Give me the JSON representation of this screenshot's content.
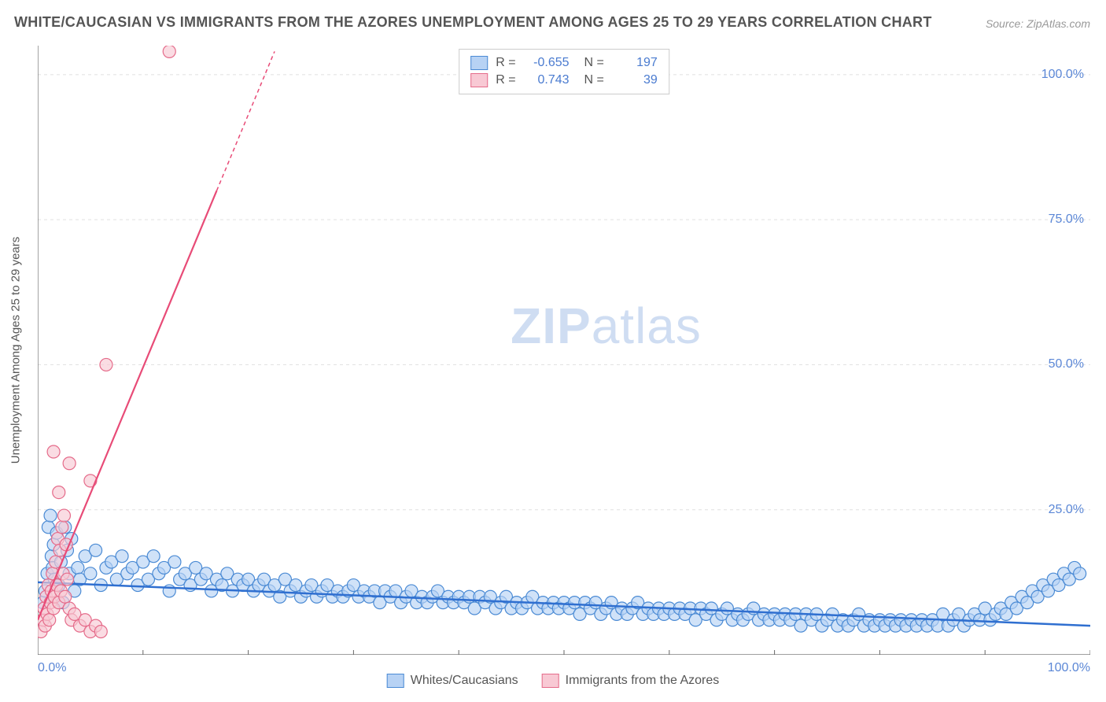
{
  "title": "WHITE/CAUCASIAN VS IMMIGRANTS FROM THE AZORES UNEMPLOYMENT AMONG AGES 25 TO 29 YEARS CORRELATION CHART",
  "source": "Source: ZipAtlas.com",
  "watermark_a": "ZIP",
  "watermark_b": "atlas",
  "ylabel": "Unemployment Among Ages 25 to 29 years",
  "chart": {
    "type": "scatter",
    "xlim": [
      0,
      100
    ],
    "ylim": [
      0,
      105
    ],
    "xticks": [
      {
        "v": 0,
        "label": "0.0%"
      },
      {
        "v": 100,
        "label": "100.0%"
      }
    ],
    "yticks": [
      {
        "v": 25,
        "label": "25.0%"
      },
      {
        "v": 50,
        "label": "50.0%"
      },
      {
        "v": 75,
        "label": "75.0%"
      },
      {
        "v": 100,
        "label": "100.0%"
      }
    ],
    "grid_color": "#e0e0e0",
    "axis_color": "#666666",
    "minor_tick_step_x": 10,
    "background_color": "#ffffff",
    "marker_radius": 8,
    "marker_stroke_width": 1.2,
    "series": [
      {
        "name": "Whites/Caucasians",
        "fill": "#b7d2f4",
        "stroke": "#4a8ad4",
        "R": "-0.655",
        "N": "197",
        "trend": {
          "x1": 0,
          "y1": 12.5,
          "x2": 100,
          "y2": 5.0,
          "color": "#2f6fd0",
          "width": 2.5,
          "dash": null
        },
        "points": [
          [
            0.5,
            9
          ],
          [
            0.7,
            11
          ],
          [
            0.9,
            14
          ],
          [
            1.0,
            22
          ],
          [
            1.2,
            24
          ],
          [
            1.3,
            17
          ],
          [
            1.4,
            15
          ],
          [
            1.5,
            19
          ],
          [
            1.6,
            13
          ],
          [
            1.8,
            21
          ],
          [
            2.0,
            12
          ],
          [
            2.2,
            16
          ],
          [
            2.4,
            9
          ],
          [
            2.6,
            22
          ],
          [
            2.8,
            18
          ],
          [
            3.0,
            14
          ],
          [
            3.2,
            20
          ],
          [
            3.5,
            11
          ],
          [
            3.8,
            15
          ],
          [
            4.0,
            13
          ],
          [
            4.5,
            17
          ],
          [
            5.0,
            14
          ],
          [
            5.5,
            18
          ],
          [
            6.0,
            12
          ],
          [
            6.5,
            15
          ],
          [
            7.0,
            16
          ],
          [
            7.5,
            13
          ],
          [
            8.0,
            17
          ],
          [
            8.5,
            14
          ],
          [
            9.0,
            15
          ],
          [
            9.5,
            12
          ],
          [
            10.0,
            16
          ],
          [
            10.5,
            13
          ],
          [
            11.0,
            17
          ],
          [
            11.5,
            14
          ],
          [
            12.0,
            15
          ],
          [
            12.5,
            11
          ],
          [
            13.0,
            16
          ],
          [
            13.5,
            13
          ],
          [
            14.0,
            14
          ],
          [
            14.5,
            12
          ],
          [
            15.0,
            15
          ],
          [
            15.5,
            13
          ],
          [
            16.0,
            14
          ],
          [
            16.5,
            11
          ],
          [
            17.0,
            13
          ],
          [
            17.5,
            12
          ],
          [
            18.0,
            14
          ],
          [
            18.5,
            11
          ],
          [
            19.0,
            13
          ],
          [
            19.5,
            12
          ],
          [
            20.0,
            13
          ],
          [
            20.5,
            11
          ],
          [
            21.0,
            12
          ],
          [
            21.5,
            13
          ],
          [
            22.0,
            11
          ],
          [
            22.5,
            12
          ],
          [
            23.0,
            10
          ],
          [
            23.5,
            13
          ],
          [
            24.0,
            11
          ],
          [
            24.5,
            12
          ],
          [
            25.0,
            10
          ],
          [
            25.5,
            11
          ],
          [
            26.0,
            12
          ],
          [
            26.5,
            10
          ],
          [
            27.0,
            11
          ],
          [
            27.5,
            12
          ],
          [
            28.0,
            10
          ],
          [
            28.5,
            11
          ],
          [
            29.0,
            10
          ],
          [
            29.5,
            11
          ],
          [
            30.0,
            12
          ],
          [
            30.5,
            10
          ],
          [
            31.0,
            11
          ],
          [
            31.5,
            10
          ],
          [
            32.0,
            11
          ],
          [
            32.5,
            9
          ],
          [
            33.0,
            11
          ],
          [
            33.5,
            10
          ],
          [
            34.0,
            11
          ],
          [
            34.5,
            9
          ],
          [
            35.0,
            10
          ],
          [
            35.5,
            11
          ],
          [
            36.0,
            9
          ],
          [
            36.5,
            10
          ],
          [
            37.0,
            9
          ],
          [
            37.5,
            10
          ],
          [
            38.0,
            11
          ],
          [
            38.5,
            9
          ],
          [
            39.0,
            10
          ],
          [
            39.5,
            9
          ],
          [
            40.0,
            10
          ],
          [
            40.5,
            9
          ],
          [
            41.0,
            10
          ],
          [
            41.5,
            8
          ],
          [
            42.0,
            10
          ],
          [
            42.5,
            9
          ],
          [
            43.0,
            10
          ],
          [
            43.5,
            8
          ],
          [
            44.0,
            9
          ],
          [
            44.5,
            10
          ],
          [
            45.0,
            8
          ],
          [
            45.5,
            9
          ],
          [
            46.0,
            8
          ],
          [
            46.5,
            9
          ],
          [
            47.0,
            10
          ],
          [
            47.5,
            8
          ],
          [
            48.0,
            9
          ],
          [
            48.5,
            8
          ],
          [
            49.0,
            9
          ],
          [
            49.5,
            8
          ],
          [
            50.0,
            9
          ],
          [
            50.5,
            8
          ],
          [
            51.0,
            9
          ],
          [
            51.5,
            7
          ],
          [
            52.0,
            9
          ],
          [
            52.5,
            8
          ],
          [
            53.0,
            9
          ],
          [
            53.5,
            7
          ],
          [
            54.0,
            8
          ],
          [
            54.5,
            9
          ],
          [
            55.0,
            7
          ],
          [
            55.5,
            8
          ],
          [
            56.0,
            7
          ],
          [
            56.5,
            8
          ],
          [
            57.0,
            9
          ],
          [
            57.5,
            7
          ],
          [
            58.0,
            8
          ],
          [
            58.5,
            7
          ],
          [
            59.0,
            8
          ],
          [
            59.5,
            7
          ],
          [
            60.0,
            8
          ],
          [
            60.5,
            7
          ],
          [
            61.0,
            8
          ],
          [
            61.5,
            7
          ],
          [
            62.0,
            8
          ],
          [
            62.5,
            6
          ],
          [
            63.0,
            8
          ],
          [
            63.5,
            7
          ],
          [
            64.0,
            8
          ],
          [
            64.5,
            6
          ],
          [
            65.0,
            7
          ],
          [
            65.5,
            8
          ],
          [
            66.0,
            6
          ],
          [
            66.5,
            7
          ],
          [
            67.0,
            6
          ],
          [
            67.5,
            7
          ],
          [
            68.0,
            8
          ],
          [
            68.5,
            6
          ],
          [
            69.0,
            7
          ],
          [
            69.5,
            6
          ],
          [
            70.0,
            7
          ],
          [
            70.5,
            6
          ],
          [
            71.0,
            7
          ],
          [
            71.5,
            6
          ],
          [
            72.0,
            7
          ],
          [
            72.5,
            5
          ],
          [
            73.0,
            7
          ],
          [
            73.5,
            6
          ],
          [
            74.0,
            7
          ],
          [
            74.5,
            5
          ],
          [
            75.0,
            6
          ],
          [
            75.5,
            7
          ],
          [
            76.0,
            5
          ],
          [
            76.5,
            6
          ],
          [
            77.0,
            5
          ],
          [
            77.5,
            6
          ],
          [
            78.0,
            7
          ],
          [
            78.5,
            5
          ],
          [
            79.0,
            6
          ],
          [
            79.5,
            5
          ],
          [
            80.0,
            6
          ],
          [
            80.5,
            5
          ],
          [
            81.0,
            6
          ],
          [
            81.5,
            5
          ],
          [
            82.0,
            6
          ],
          [
            82.5,
            5
          ],
          [
            83.0,
            6
          ],
          [
            83.5,
            5
          ],
          [
            84.0,
            6
          ],
          [
            84.5,
            5
          ],
          [
            85.0,
            6
          ],
          [
            85.5,
            5
          ],
          [
            86.0,
            7
          ],
          [
            86.5,
            5
          ],
          [
            87.0,
            6
          ],
          [
            87.5,
            7
          ],
          [
            88.0,
            5
          ],
          [
            88.5,
            6
          ],
          [
            89.0,
            7
          ],
          [
            89.5,
            6
          ],
          [
            90.0,
            8
          ],
          [
            90.5,
            6
          ],
          [
            91.0,
            7
          ],
          [
            91.5,
            8
          ],
          [
            92.0,
            7
          ],
          [
            92.5,
            9
          ],
          [
            93.0,
            8
          ],
          [
            93.5,
            10
          ],
          [
            94.0,
            9
          ],
          [
            94.5,
            11
          ],
          [
            95.0,
            10
          ],
          [
            95.5,
            12
          ],
          [
            96.0,
            11
          ],
          [
            96.5,
            13
          ],
          [
            97.0,
            12
          ],
          [
            97.5,
            14
          ],
          [
            98.0,
            13
          ],
          [
            98.5,
            15
          ],
          [
            99.0,
            14
          ]
        ]
      },
      {
        "name": "Immigrants from the Azores",
        "fill": "#f8c9d4",
        "stroke": "#e56b8a",
        "R": "0.743",
        "N": "39",
        "trend": {
          "x1": 0,
          "y1": 6,
          "x2": 17,
          "y2": 80,
          "color": "#e84b77",
          "width": 2.2,
          "dash": null
        },
        "trend_ext": {
          "x1": 17,
          "y1": 80,
          "x2": 22.5,
          "y2": 104,
          "color": "#e84b77",
          "width": 1.5,
          "dash": "5,4"
        },
        "points": [
          [
            0.3,
            4
          ],
          [
            0.5,
            6
          ],
          [
            0.6,
            8
          ],
          [
            0.7,
            5
          ],
          [
            0.8,
            10
          ],
          [
            0.9,
            7
          ],
          [
            1.0,
            12
          ],
          [
            1.1,
            6
          ],
          [
            1.2,
            9
          ],
          [
            1.3,
            11
          ],
          [
            1.4,
            14
          ],
          [
            1.5,
            8
          ],
          [
            1.6,
            10
          ],
          [
            1.7,
            16
          ],
          [
            1.8,
            12
          ],
          [
            1.9,
            20
          ],
          [
            2.0,
            9
          ],
          [
            2.1,
            18
          ],
          [
            2.2,
            11
          ],
          [
            2.3,
            22
          ],
          [
            2.4,
            14
          ],
          [
            2.5,
            24
          ],
          [
            2.6,
            10
          ],
          [
            2.7,
            19
          ],
          [
            2.8,
            13
          ],
          [
            3.0,
            8
          ],
          [
            3.2,
            6
          ],
          [
            3.5,
            7
          ],
          [
            4.0,
            5
          ],
          [
            4.5,
            6
          ],
          [
            5.0,
            4
          ],
          [
            5.5,
            5
          ],
          [
            6.0,
            4
          ],
          [
            1.5,
            35
          ],
          [
            3.0,
            33
          ],
          [
            5.0,
            30
          ],
          [
            6.5,
            50
          ],
          [
            12.5,
            104
          ],
          [
            2.0,
            28
          ]
        ]
      }
    ]
  },
  "legend_bottom": [
    {
      "label": "Whites/Caucasians",
      "fill": "#b7d2f4",
      "stroke": "#4a8ad4"
    },
    {
      "label": "Immigrants from the Azores",
      "fill": "#f8c9d4",
      "stroke": "#e56b8a"
    }
  ]
}
